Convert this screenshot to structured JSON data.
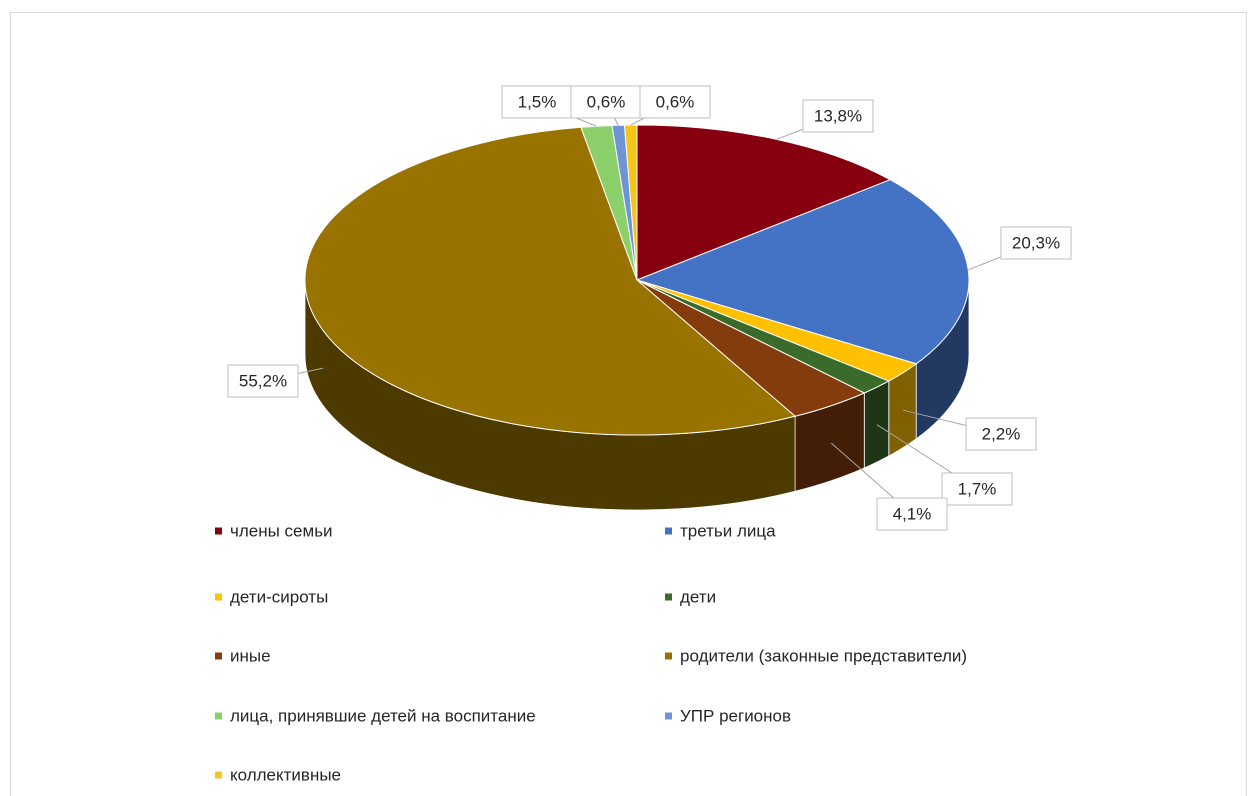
{
  "chart_data": {
    "type": "pie",
    "categories": [
      "члены семьи",
      "третьи лица",
      "дети-сироты",
      "дети",
      "иные",
      "родители (законные представители)",
      "лица, принявшие детей на воспитание",
      "УПР регионов",
      "коллективные"
    ],
    "values": [
      13.8,
      20.3,
      2.2,
      1.7,
      4.1,
      55.2,
      1.5,
      0.6,
      0.6
    ],
    "value_labels": [
      "13,8%",
      "20,3%",
      "2,2%",
      "1,7%",
      "4,1%",
      "55,2%",
      "1,5%",
      "0,6%",
      "0,6%"
    ],
    "colors": [
      "#870010",
      "#4472c4",
      "#ffc000",
      "#3b6b2a",
      "#843c0c",
      "#997300",
      "#8cd06c",
      "#6f94d6",
      "#f5c518"
    ],
    "legend": "bottom"
  }
}
